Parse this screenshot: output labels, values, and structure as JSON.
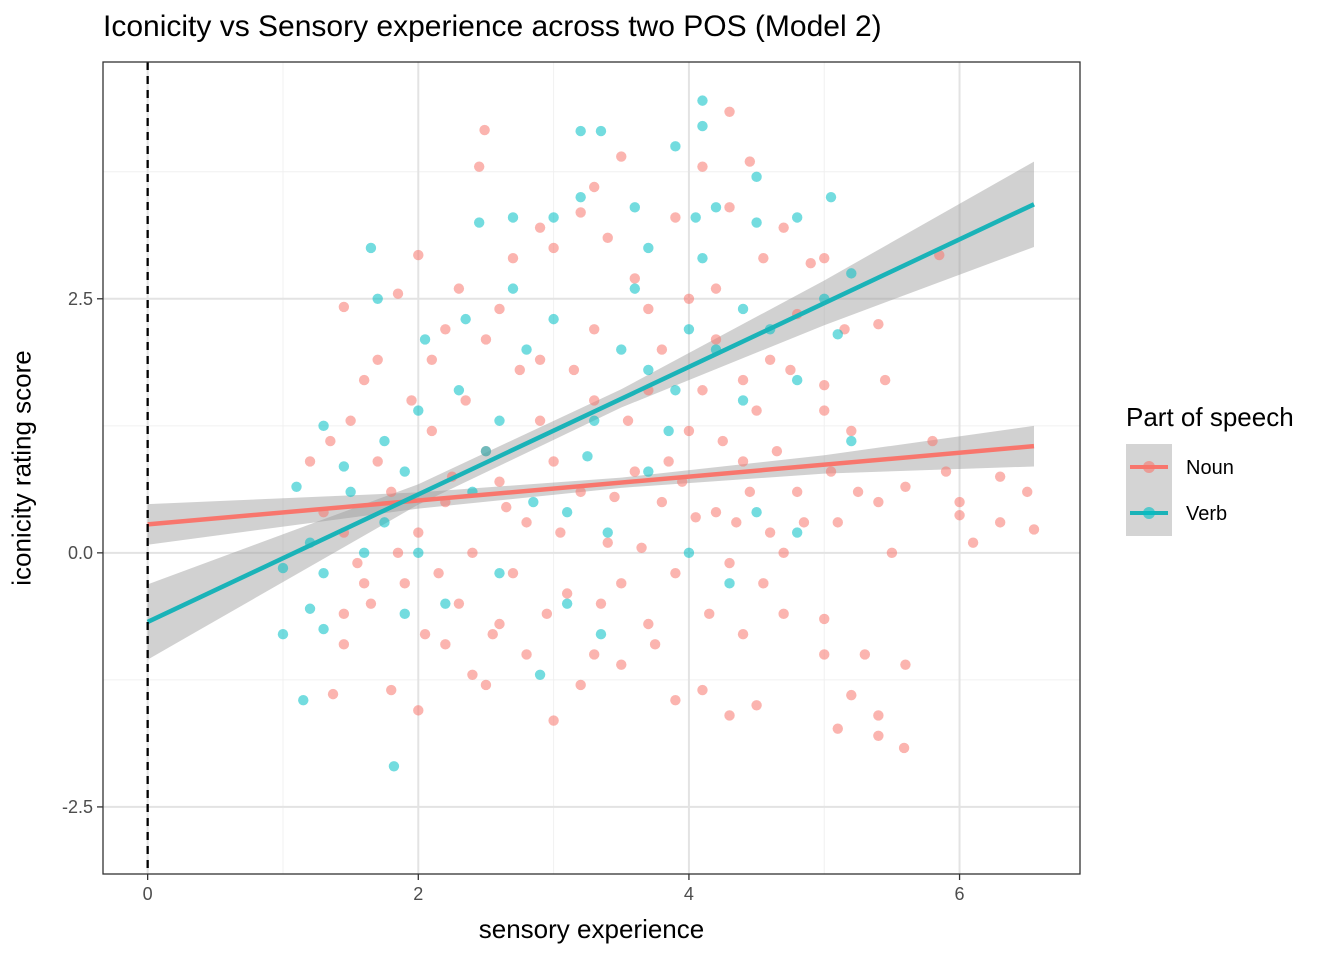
{
  "chart_data": {
    "type": "scatter",
    "title": "Iconicity vs Sensory experience across two POS (Model 2)",
    "xlabel": "sensory experience",
    "ylabel": "iconicity rating score",
    "xlim": [
      -0.33,
      6.89
    ],
    "ylim": [
      -3.16,
      4.83
    ],
    "xticks": [
      0,
      2,
      4,
      6
    ],
    "xtick_labels": [
      "0",
      "2",
      "4",
      "6"
    ],
    "yticks": [
      -2.5,
      0,
      2.5
    ],
    "ytick_labels": [
      "-2.5",
      "0.0",
      "2.5"
    ],
    "grid": true,
    "vline": {
      "x": 0,
      "style": "dashed",
      "color": "#000000"
    },
    "legend": {
      "title": "Part of speech",
      "placement": "right",
      "entries": [
        "Noun",
        "Verb"
      ]
    },
    "series": [
      {
        "name": "Noun",
        "color": "#F8766D",
        "fit": {
          "x": [
            0,
            6.55
          ],
          "y": [
            0.28,
            1.05
          ]
        },
        "ci": {
          "x": [
            0,
            2,
            3.5,
            5,
            6.55
          ],
          "lo": [
            0.08,
            0.435,
            0.64,
            0.78,
            0.85
          ],
          "hi": [
            0.48,
            0.595,
            0.74,
            0.96,
            1.25
          ]
        },
        "points": [
          [
            2.49,
            4.16
          ],
          [
            4.3,
            4.34
          ],
          [
            2.45,
            3.8
          ],
          [
            3.5,
            3.9
          ],
          [
            4.45,
            3.85
          ],
          [
            3.3,
            3.6
          ],
          [
            4.1,
            3.8
          ],
          [
            3.9,
            3.3
          ],
          [
            4.7,
            3.2
          ],
          [
            4.3,
            3.4
          ],
          [
            3.2,
            3.35
          ],
          [
            2.9,
            3.2
          ],
          [
            1.45,
            2.42
          ],
          [
            2.0,
            2.93
          ],
          [
            1.85,
            2.55
          ],
          [
            2.3,
            2.6
          ],
          [
            2.7,
            2.9
          ],
          [
            3.6,
            2.7
          ],
          [
            4.2,
            2.6
          ],
          [
            4.55,
            2.9
          ],
          [
            4.9,
            2.85
          ],
          [
            5.85,
            2.93
          ],
          [
            5.0,
            2.9
          ],
          [
            4.8,
            2.35
          ],
          [
            5.15,
            2.2
          ],
          [
            5.4,
            2.25
          ],
          [
            5.45,
            1.7
          ],
          [
            5.0,
            1.65
          ],
          [
            4.6,
            1.9
          ],
          [
            4.2,
            2.1
          ],
          [
            3.8,
            2.0
          ],
          [
            3.3,
            2.2
          ],
          [
            2.9,
            1.9
          ],
          [
            2.5,
            2.1
          ],
          [
            2.1,
            1.9
          ],
          [
            1.7,
            1.9
          ],
          [
            1.6,
            1.7
          ],
          [
            1.5,
            1.3
          ],
          [
            1.35,
            1.1
          ],
          [
            1.2,
            0.9
          ],
          [
            1.3,
            0.4
          ],
          [
            1.45,
            0.2
          ],
          [
            1.55,
            -0.1
          ],
          [
            1.6,
            -0.3
          ],
          [
            1.45,
            -0.6
          ],
          [
            1.45,
            -0.9
          ],
          [
            1.37,
            -1.39
          ],
          [
            1.8,
            -1.35
          ],
          [
            2.0,
            -1.55
          ],
          [
            2.2,
            -0.9
          ],
          [
            2.4,
            -1.2
          ],
          [
            2.5,
            -1.3
          ],
          [
            2.6,
            -0.7
          ],
          [
            2.8,
            -1.0
          ],
          [
            3.0,
            -1.65
          ],
          [
            3.2,
            -1.3
          ],
          [
            3.3,
            -1.0
          ],
          [
            3.5,
            -1.1
          ],
          [
            3.7,
            -0.7
          ],
          [
            3.9,
            -1.45
          ],
          [
            4.1,
            -1.35
          ],
          [
            4.3,
            -1.6
          ],
          [
            4.5,
            -1.5
          ],
          [
            4.4,
            -0.8
          ],
          [
            4.7,
            -0.6
          ],
          [
            5.0,
            -0.65
          ],
          [
            5.0,
            -1.0
          ],
          [
            5.1,
            -1.73
          ],
          [
            5.2,
            -1.4
          ],
          [
            5.4,
            -1.6
          ],
          [
            5.4,
            -1.8
          ],
          [
            5.3,
            -1.0
          ],
          [
            5.59,
            -1.92
          ],
          [
            5.6,
            -1.1
          ],
          [
            5.5,
            0.0
          ],
          [
            5.4,
            0.5
          ],
          [
            5.6,
            0.65
          ],
          [
            5.8,
            1.1
          ],
          [
            5.9,
            0.8
          ],
          [
            6.0,
            0.5
          ],
          [
            6.0,
            0.37
          ],
          [
            6.1,
            0.1
          ],
          [
            6.3,
            0.3
          ],
          [
            6.3,
            0.75
          ],
          [
            6.5,
            0.6
          ],
          [
            6.55,
            0.23
          ],
          [
            5.2,
            1.2
          ],
          [
            5.0,
            1.4
          ],
          [
            4.8,
            0.6
          ],
          [
            4.6,
            0.2
          ],
          [
            4.4,
            0.9
          ],
          [
            4.2,
            0.4
          ],
          [
            4.0,
            1.2
          ],
          [
            3.8,
            0.5
          ],
          [
            3.6,
            0.8
          ],
          [
            3.4,
            0.1
          ],
          [
            3.2,
            0.6
          ],
          [
            3.0,
            0.9
          ],
          [
            2.8,
            0.3
          ],
          [
            2.6,
            0.7
          ],
          [
            2.4,
            0.0
          ],
          [
            2.2,
            0.5
          ],
          [
            2.0,
            0.2
          ],
          [
            1.8,
            0.6
          ],
          [
            1.9,
            -0.3
          ],
          [
            2.3,
            -0.5
          ],
          [
            2.7,
            -0.2
          ],
          [
            3.1,
            -0.4
          ],
          [
            3.5,
            -0.3
          ],
          [
            3.9,
            -0.2
          ],
          [
            4.3,
            -0.1
          ],
          [
            4.7,
            0.0
          ],
          [
            5.1,
            0.3
          ],
          [
            3.3,
            1.5
          ],
          [
            3.7,
            1.6
          ],
          [
            4.1,
            1.6
          ],
          [
            4.5,
            1.4
          ],
          [
            2.9,
            1.3
          ],
          [
            2.5,
            1.0
          ],
          [
            2.1,
            1.2
          ],
          [
            1.7,
            0.9
          ],
          [
            3.05,
            0.2
          ],
          [
            3.45,
            0.55
          ],
          [
            3.85,
            0.9
          ],
          [
            4.25,
            1.1
          ],
          [
            4.65,
            1.0
          ],
          [
            2.65,
            0.45
          ],
          [
            2.25,
            0.75
          ],
          [
            1.95,
            1.5
          ],
          [
            2.35,
            1.5
          ],
          [
            2.75,
            1.8
          ],
          [
            3.15,
            1.8
          ],
          [
            3.55,
            1.3
          ],
          [
            3.95,
            0.7
          ],
          [
            4.35,
            0.3
          ],
          [
            4.75,
            1.8
          ],
          [
            5.05,
            0.8
          ],
          [
            2.55,
            -0.8
          ],
          [
            2.95,
            -0.6
          ],
          [
            3.35,
            -0.5
          ],
          [
            3.75,
            -0.9
          ],
          [
            4.15,
            -0.6
          ],
          [
            4.55,
            -0.3
          ],
          [
            2.05,
            -0.8
          ],
          [
            1.65,
            -0.5
          ],
          [
            3.0,
            3.0
          ],
          [
            3.4,
            3.1
          ],
          [
            3.7,
            2.4
          ],
          [
            2.6,
            2.4
          ],
          [
            2.2,
            2.2
          ],
          [
            4.0,
            2.5
          ],
          [
            4.4,
            1.7
          ],
          [
            1.85,
            0.0
          ],
          [
            2.15,
            -0.2
          ],
          [
            3.65,
            0.05
          ],
          [
            4.05,
            0.35
          ],
          [
            4.45,
            0.6
          ],
          [
            4.85,
            0.3
          ],
          [
            5.25,
            0.6
          ]
        ]
      },
      {
        "name": "Verb",
        "color": "#00BFC4",
        "fit": {
          "x": [
            0,
            6.55
          ],
          "y": [
            -0.68,
            3.43
          ]
        },
        "ci": {
          "x": [
            0,
            2,
            3.5,
            5,
            6.55
          ],
          "lo": [
            -1.05,
            0.475,
            1.43,
            2.24,
            3.01
          ],
          "hi": [
            -0.31,
            0.675,
            1.61,
            2.68,
            3.85
          ]
        },
        "points": [
          [
            4.1,
            4.45
          ],
          [
            4.1,
            4.2
          ],
          [
            3.2,
            4.15
          ],
          [
            3.35,
            4.15
          ],
          [
            3.9,
            4.0
          ],
          [
            5.05,
            3.5
          ],
          [
            4.5,
            3.7
          ],
          [
            4.2,
            3.4
          ],
          [
            3.6,
            3.4
          ],
          [
            3.2,
            3.5
          ],
          [
            2.7,
            3.3
          ],
          [
            2.45,
            3.25
          ],
          [
            3.0,
            3.3
          ],
          [
            3.7,
            3.0
          ],
          [
            4.05,
            3.3
          ],
          [
            4.8,
            3.3
          ],
          [
            4.5,
            3.25
          ],
          [
            1.65,
            3.0
          ],
          [
            1.7,
            2.5
          ],
          [
            1.82,
            -2.1
          ],
          [
            1.15,
            -1.45
          ],
          [
            1.0,
            -0.8
          ],
          [
            1.0,
            -0.15
          ],
          [
            1.1,
            0.65
          ],
          [
            1.3,
            1.25
          ],
          [
            1.2,
            0.1
          ],
          [
            1.3,
            -0.2
          ],
          [
            1.2,
            -0.55
          ],
          [
            1.3,
            -0.75
          ],
          [
            1.5,
            0.6
          ],
          [
            1.6,
            0.0
          ],
          [
            1.75,
            0.3
          ],
          [
            1.9,
            0.8
          ],
          [
            2.0,
            1.4
          ],
          [
            2.05,
            2.1
          ],
          [
            2.3,
            1.6
          ],
          [
            2.4,
            0.6
          ],
          [
            2.5,
            1.0
          ],
          [
            2.6,
            -0.2
          ],
          [
            2.9,
            -1.2
          ],
          [
            3.35,
            -0.8
          ],
          [
            3.1,
            0.4
          ],
          [
            3.3,
            1.3
          ],
          [
            3.5,
            2.0
          ],
          [
            3.7,
            1.8
          ],
          [
            3.9,
            1.6
          ],
          [
            4.0,
            2.2
          ],
          [
            4.2,
            2.0
          ],
          [
            4.4,
            2.4
          ],
          [
            4.6,
            2.2
          ],
          [
            4.8,
            1.7
          ],
          [
            5.0,
            2.5
          ],
          [
            5.2,
            2.75
          ],
          [
            5.1,
            2.15
          ],
          [
            5.2,
            1.1
          ],
          [
            4.8,
            0.2
          ],
          [
            4.5,
            0.4
          ],
          [
            4.3,
            -0.3
          ],
          [
            4.0,
            0.0
          ],
          [
            3.7,
            0.8
          ],
          [
            3.4,
            0.2
          ],
          [
            3.1,
            -0.5
          ],
          [
            2.8,
            2.0
          ],
          [
            2.6,
            1.3
          ],
          [
            2.2,
            -0.5
          ],
          [
            1.9,
            -0.6
          ],
          [
            2.0,
            0.0
          ],
          [
            2.7,
            2.6
          ],
          [
            3.0,
            2.3
          ],
          [
            3.6,
            2.6
          ],
          [
            4.1,
            2.9
          ],
          [
            2.35,
            2.3
          ],
          [
            1.75,
            1.1
          ],
          [
            1.45,
            0.85
          ],
          [
            2.85,
            0.5
          ],
          [
            3.25,
            0.95
          ],
          [
            3.85,
            1.2
          ],
          [
            4.4,
            1.5
          ]
        ]
      }
    ]
  }
}
